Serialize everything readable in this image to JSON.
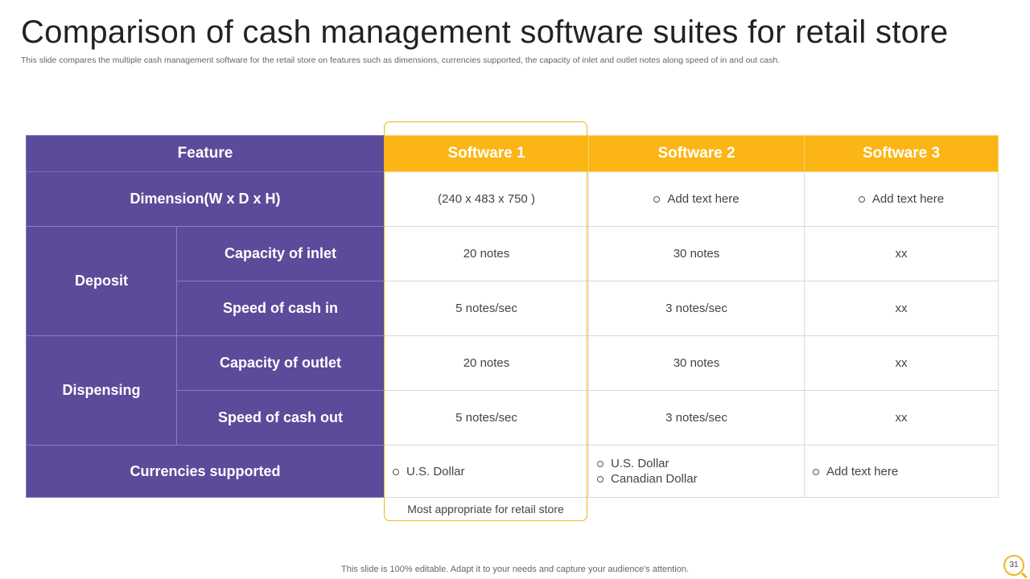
{
  "slide": {
    "title": "Comparison of cash management software suites for retail store",
    "subtitle": "This slide compares the multiple cash management software for the retail store on features such as dimensions, currencies supported, the capacity of inlet and outlet notes along speed of in and out cash.",
    "footer": "This slide is 100% editable. Adapt it to your needs and capture your audience's attention.",
    "page_number": "31",
    "highlight_note": "Most appropriate for retail store"
  },
  "colors": {
    "purple": "#5b4b9a",
    "yellow": "#fbb515"
  },
  "table": {
    "headers": {
      "feature": "Feature",
      "sw1": "Software 1",
      "sw2": "Software 2",
      "sw3": "Software 3"
    },
    "dimension": {
      "label": "Dimension(W x D x H)",
      "sw1": "(240 x 483 x 750 )",
      "sw2": "Add text here",
      "sw3": "Add text here"
    },
    "deposit": {
      "group": "Deposit",
      "inlet": {
        "label": "Capacity of inlet",
        "sw1": "20 notes",
        "sw2": "30 notes",
        "sw3": "xx"
      },
      "speed_in": {
        "label": "Speed of cash in",
        "sw1": "5 notes/sec",
        "sw2": "3 notes/sec",
        "sw3": "xx"
      }
    },
    "dispensing": {
      "group": "Dispensing",
      "outlet": {
        "label": "Capacity of outlet",
        "sw1": "20 notes",
        "sw2": "30 notes",
        "sw3": "xx"
      },
      "speed_out": {
        "label": "Speed of cash out",
        "sw1": "5 notes/sec",
        "sw2": "3 notes/sec",
        "sw3": "xx"
      }
    },
    "currencies": {
      "label": "Currencies supported",
      "sw1": [
        "U.S. Dollar"
      ],
      "sw2": [
        "U.S. Dollar",
        "Canadian Dollar"
      ],
      "sw3": [
        "Add text here"
      ]
    }
  }
}
